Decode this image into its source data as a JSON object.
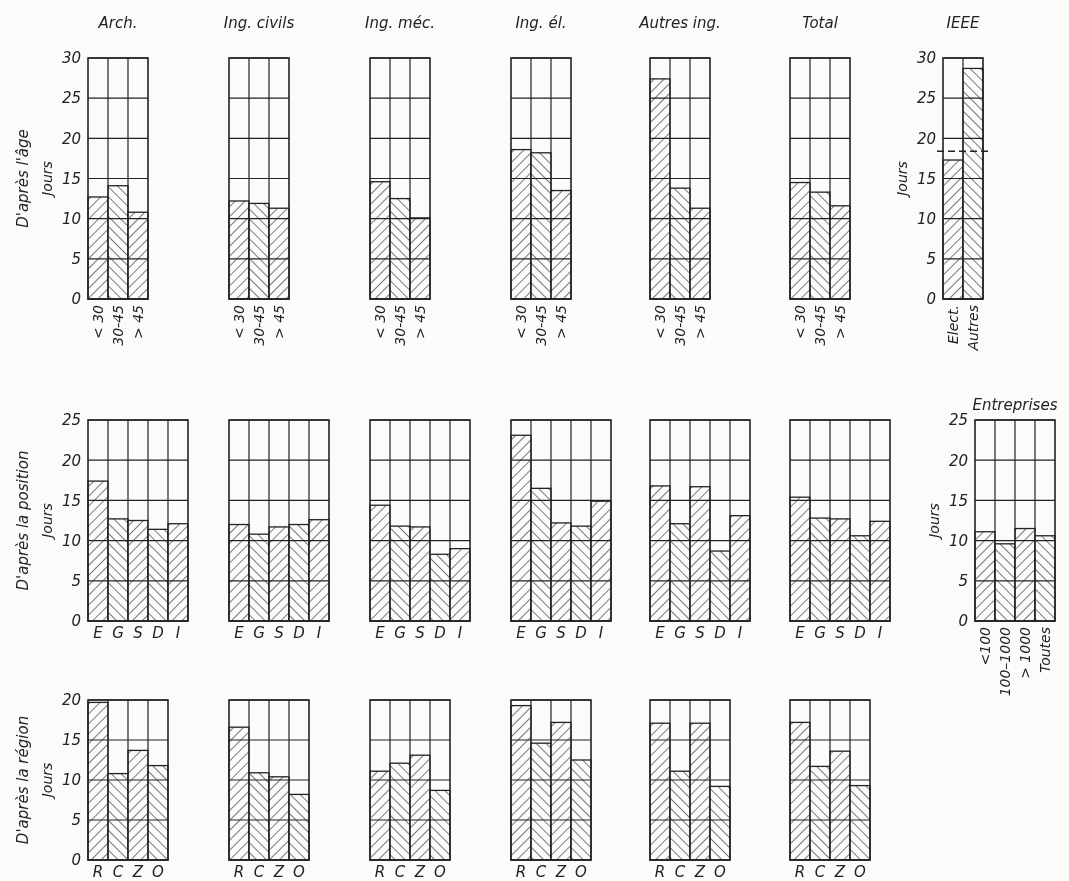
{
  "chart_data": [
    {
      "type": "bar",
      "title": "Arch.",
      "ylabel": "Jours",
      "annotations": [
        "D'après l'âge"
      ],
      "categories": [
        "< 30",
        "30-45",
        "> 45"
      ],
      "values": [
        12.7,
        14.1,
        10.8
      ],
      "ylim": [
        0,
        30
      ],
      "yticks": [
        0,
        5,
        10,
        15,
        20,
        25,
        30
      ],
      "grid": true
    },
    {
      "type": "bar",
      "title": "Ing. civils",
      "categories": [
        "< 30",
        "30-45",
        "> 45"
      ],
      "values": [
        12.2,
        11.9,
        11.3
      ],
      "ylim": [
        0,
        30
      ],
      "yticks": [
        0,
        5,
        10,
        15,
        20,
        25,
        30
      ],
      "grid": true,
      "tick_labels": "x"
    },
    {
      "type": "bar",
      "title": "Ing. méc.",
      "categories": [
        "< 30",
        "30-45",
        "> 45"
      ],
      "values": [
        14.6,
        12.5,
        10.1
      ],
      "ylim": [
        0,
        30
      ],
      "yticks": [
        0,
        5,
        10,
        15,
        20,
        25,
        30
      ],
      "grid": true,
      "tick_labels": "x"
    },
    {
      "type": "bar",
      "title": "Ing. él.",
      "categories": [
        "< 30",
        "30-45",
        "> 45"
      ],
      "values": [
        18.6,
        18.2,
        13.5
      ],
      "ylim": [
        0,
        30
      ],
      "yticks": [
        0,
        5,
        10,
        15,
        20,
        25,
        30
      ],
      "grid": true,
      "tick_labels": "x"
    },
    {
      "type": "bar",
      "title": "Autres ing.",
      "categories": [
        "< 30",
        "30-45",
        "> 45"
      ],
      "values": [
        27.4,
        13.8,
        11.3
      ],
      "ylim": [
        0,
        30
      ],
      "yticks": [
        0,
        5,
        10,
        15,
        20,
        25,
        30
      ],
      "grid": true,
      "tick_labels": "x"
    },
    {
      "type": "bar",
      "title": "Total",
      "categories": [
        "< 30",
        "30-45",
        "> 45"
      ],
      "values": [
        14.5,
        13.3,
        11.6
      ],
      "ylim": [
        0,
        30
      ],
      "yticks": [
        0,
        5,
        10,
        15,
        20,
        25,
        30
      ],
      "grid": true,
      "tick_labels": "x"
    },
    {
      "type": "bar",
      "title": "IEEE",
      "ylabel": "Jours",
      "categories": [
        "Elect.",
        "Autres"
      ],
      "values": [
        17.3,
        28.7
      ],
      "ylim": [
        0,
        30
      ],
      "yticks": [
        0,
        5,
        10,
        15,
        20,
        25,
        30
      ],
      "grid": true,
      "ref_lines": [
        {
          "axis": "y",
          "value": 18.4,
          "line_style": "dashed"
        }
      ]
    },
    {
      "type": "bar",
      "ylabel": "Jours",
      "annotations": [
        "D'après la position"
      ],
      "categories": [
        "E",
        "G",
        "S",
        "D",
        "I"
      ],
      "values": [
        17.4,
        12.7,
        12.5,
        11.4,
        12.1
      ],
      "ylim": [
        0,
        25
      ],
      "yticks": [
        0,
        5,
        10,
        15,
        20,
        25
      ],
      "grid": true
    },
    {
      "type": "bar",
      "categories": [
        "E",
        "G",
        "S",
        "D",
        "I"
      ],
      "values": [
        12.0,
        10.8,
        11.7,
        12.0,
        12.6
      ],
      "ylim": [
        0,
        25
      ],
      "yticks": [
        0,
        5,
        10,
        15,
        20,
        25
      ],
      "grid": true,
      "tick_labels": "x"
    },
    {
      "type": "bar",
      "categories": [
        "E",
        "G",
        "S",
        "D",
        "I"
      ],
      "values": [
        14.4,
        11.8,
        11.7,
        8.3,
        9.0
      ],
      "ylim": [
        0,
        25
      ],
      "yticks": [
        0,
        5,
        10,
        15,
        20,
        25
      ],
      "grid": true,
      "tick_labels": "x"
    },
    {
      "type": "bar",
      "categories": [
        "E",
        "G",
        "S",
        "D",
        "I"
      ],
      "values": [
        23.1,
        16.5,
        12.2,
        11.8,
        14.9
      ],
      "ylim": [
        0,
        25
      ],
      "yticks": [
        0,
        5,
        10,
        15,
        20,
        25
      ],
      "grid": true,
      "tick_labels": "x"
    },
    {
      "type": "bar",
      "categories": [
        "E",
        "G",
        "S",
        "D",
        "I"
      ],
      "values": [
        16.8,
        12.1,
        16.7,
        8.7,
        13.1
      ],
      "ylim": [
        0,
        25
      ],
      "yticks": [
        0,
        5,
        10,
        15,
        20,
        25
      ],
      "grid": true,
      "tick_labels": "x"
    },
    {
      "type": "bar",
      "categories": [
        "E",
        "G",
        "S",
        "D",
        "I"
      ],
      "values": [
        15.4,
        12.8,
        12.7,
        10.6,
        12.4
      ],
      "ylim": [
        0,
        25
      ],
      "yticks": [
        0,
        5,
        10,
        15,
        20,
        25
      ],
      "grid": true,
      "tick_labels": "x"
    },
    {
      "type": "bar",
      "title": "Entreprises",
      "ylabel": "Jours",
      "categories": [
        "<100",
        "100–1000",
        "> 1000",
        "Toutes"
      ],
      "values": [
        11.1,
        9.6,
        11.5,
        10.6
      ],
      "ylim": [
        0,
        25
      ],
      "yticks": [
        0,
        5,
        10,
        15,
        20,
        25
      ],
      "grid": true
    },
    {
      "type": "bar",
      "ylabel": "Jours",
      "annotations": [
        "D'après la région"
      ],
      "categories": [
        "R",
        "C",
        "Z",
        "O"
      ],
      "values": [
        19.7,
        10.8,
        13.7,
        11.8
      ],
      "ylim": [
        0,
        20
      ],
      "yticks": [
        0,
        5,
        10,
        15,
        20
      ],
      "grid": true
    },
    {
      "type": "bar",
      "categories": [
        "R",
        "C",
        "Z",
        "O"
      ],
      "values": [
        16.6,
        10.9,
        10.4,
        8.2
      ],
      "ylim": [
        0,
        20
      ],
      "yticks": [
        0,
        5,
        10,
        15,
        20
      ],
      "grid": true,
      "tick_labels": "x"
    },
    {
      "type": "bar",
      "categories": [
        "R",
        "C",
        "Z",
        "O"
      ],
      "values": [
        11.1,
        12.1,
        13.1,
        8.7
      ],
      "ylim": [
        0,
        20
      ],
      "yticks": [
        0,
        5,
        10,
        15,
        20
      ],
      "grid": true,
      "tick_labels": "x"
    },
    {
      "type": "bar",
      "categories": [
        "R",
        "C",
        "Z",
        "O"
      ],
      "values": [
        19.3,
        14.6,
        17.2,
        12.5
      ],
      "ylim": [
        0,
        20
      ],
      "yticks": [
        0,
        5,
        10,
        15,
        20
      ],
      "grid": true,
      "tick_labels": "x"
    },
    {
      "type": "bar",
      "categories": [
        "R",
        "C",
        "Z",
        "O"
      ],
      "values": [
        17.1,
        11.1,
        17.1,
        9.2
      ],
      "ylim": [
        0,
        20
      ],
      "yticks": [
        0,
        5,
        10,
        15,
        20
      ],
      "grid": true,
      "tick_labels": "x"
    },
    {
      "type": "bar",
      "categories": [
        "R",
        "C",
        "Z",
        "O"
      ],
      "values": [
        17.2,
        11.7,
        13.6,
        9.3
      ],
      "ylim": [
        0,
        20
      ],
      "yticks": [
        0,
        5,
        10,
        15,
        20
      ],
      "grid": true,
      "tick_labels": "x"
    }
  ]
}
